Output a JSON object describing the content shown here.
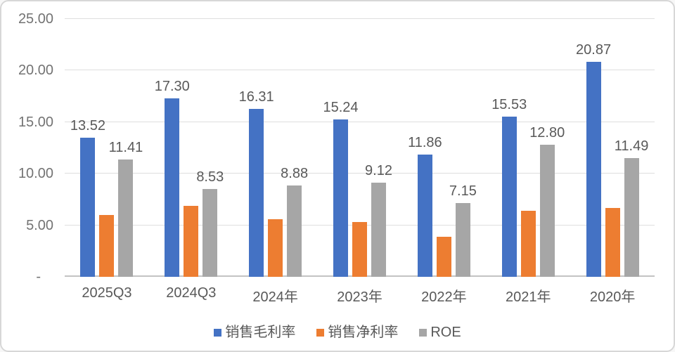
{
  "chart": {
    "background": "#ffffff",
    "frame_border_color": "#d7d7d7",
    "text_color": "#595959",
    "gridline_color": "#dedede",
    "axis_line_color": "#c3c3c3"
  },
  "chart_data": {
    "type": "bar",
    "title": "",
    "xlabel": "",
    "ylabel": "",
    "grid": true,
    "legend_position": "bottom",
    "ylim": [
      0,
      25
    ],
    "yticks": [
      {
        "value": 25,
        "label": "25.00"
      },
      {
        "value": 20,
        "label": "20.00"
      },
      {
        "value": 15,
        "label": "15.00"
      },
      {
        "value": 10,
        "label": "10.00"
      },
      {
        "value": 5,
        "label": "5.00"
      },
      {
        "value": 0,
        "label": "-"
      }
    ],
    "categories": [
      "2025Q3",
      "2024Q3",
      "2024年",
      "2023年",
      "2022年",
      "2021年",
      "2020年"
    ],
    "series": [
      {
        "key": "gross-margin",
        "name": "销售毛利率",
        "color": "#4472C4",
        "values": [
          13.52,
          17.3,
          16.31,
          15.24,
          11.86,
          15.53,
          20.87
        ],
        "labels": [
          "13.52",
          "17.30",
          "16.31",
          "15.24",
          "11.86",
          "15.53",
          "20.87"
        ]
      },
      {
        "key": "net-margin",
        "name": "销售净利率",
        "color": "#ED7D31",
        "values": [
          6.0,
          6.9,
          5.6,
          5.3,
          3.9,
          6.4,
          6.7
        ],
        "labels": null
      },
      {
        "key": "roe",
        "name": "ROE",
        "color": "#A6A6A6",
        "values": [
          11.41,
          8.53,
          8.88,
          9.12,
          7.15,
          12.8,
          11.49
        ],
        "labels": [
          "11.41",
          "8.53",
          "8.88",
          "9.12",
          "7.15",
          "12.80",
          "11.49"
        ]
      }
    ]
  }
}
